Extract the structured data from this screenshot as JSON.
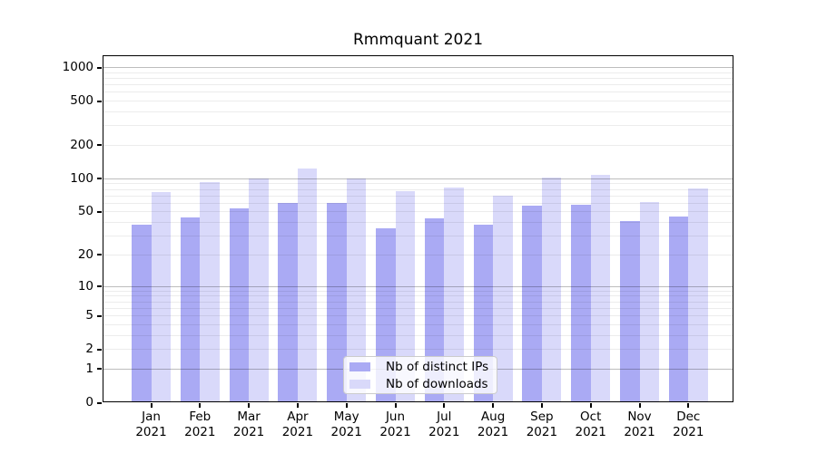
{
  "chart_data": {
    "type": "bar",
    "title": "Rmmquant 2021",
    "yscale": "symlog",
    "grid": true,
    "legend_position": "lower center",
    "months": [
      "Jan",
      "Feb",
      "Mar",
      "Apr",
      "May",
      "Jun",
      "Jul",
      "Aug",
      "Sep",
      "Oct",
      "Nov",
      "Dec"
    ],
    "year_label": "2021",
    "y_ticks": [
      0,
      1,
      2,
      5,
      10,
      20,
      50,
      100,
      200,
      500,
      1000
    ],
    "ylim": [
      0,
      1275
    ],
    "series": [
      {
        "name": "Nb of distinct IPs",
        "color": "#aaaaf4",
        "values": [
          38,
          44,
          53,
          60,
          60,
          35,
          43,
          38,
          56,
          58,
          41,
          45
        ]
      },
      {
        "name": "Nb of downloads",
        "color": "#d9d9fa",
        "values": [
          75,
          93,
          100,
          122,
          100,
          76,
          83,
          70,
          101,
          108,
          61,
          81
        ]
      }
    ]
  },
  "colors": {
    "background": "#ffffff",
    "spine": "#000000",
    "major_grid": "#bdbdbd",
    "minor_grid": "#ebebeb",
    "legend_border": "#cccccc",
    "text": "#000000"
  }
}
